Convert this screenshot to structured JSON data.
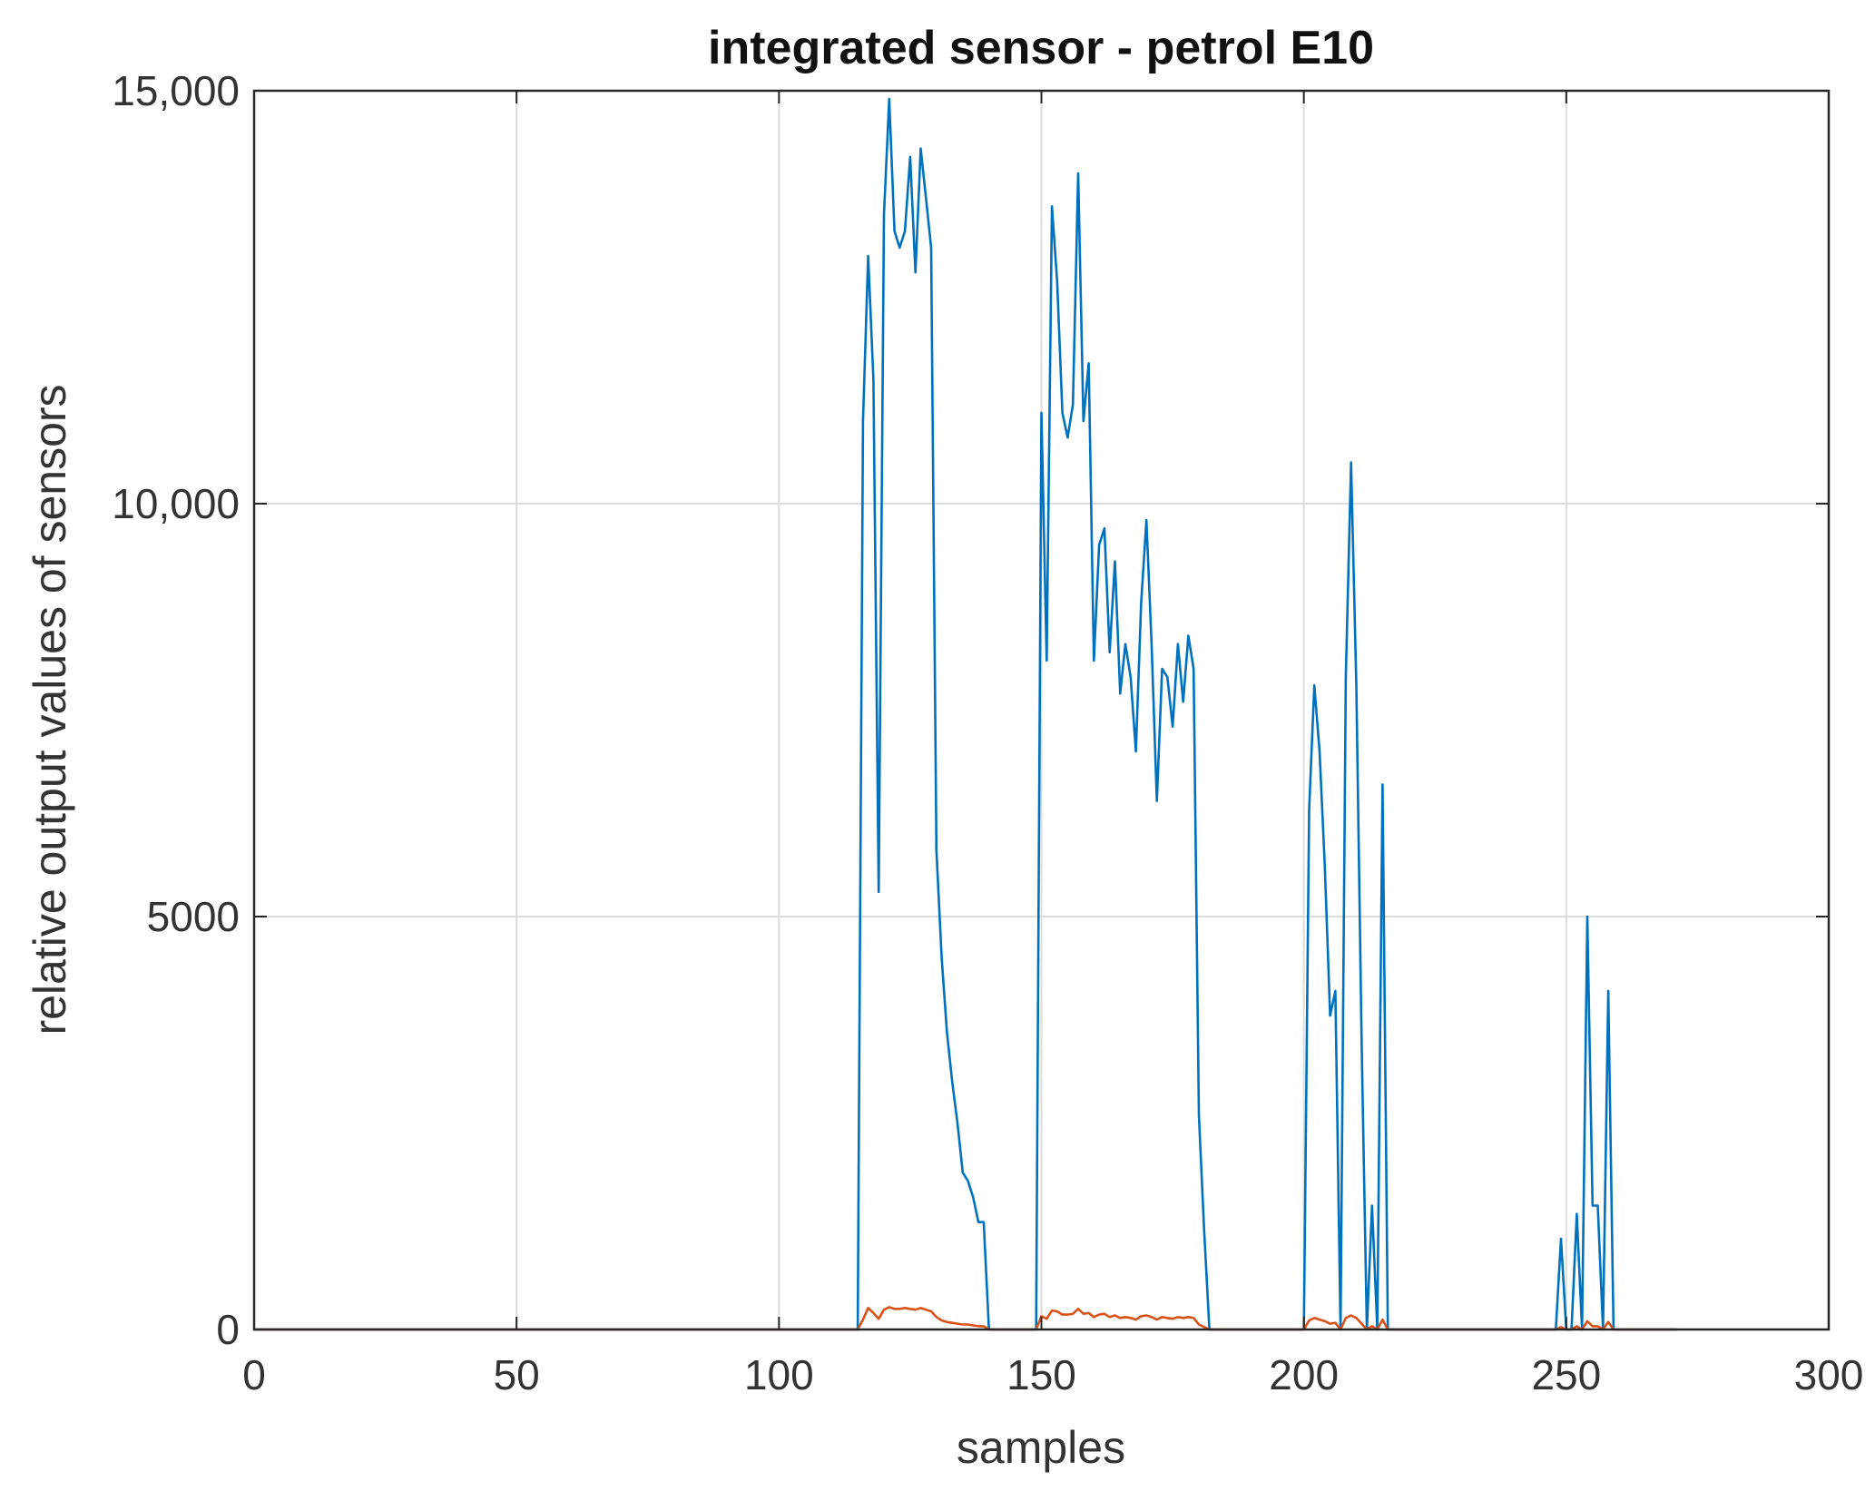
{
  "chart_data": {
    "type": "line",
    "title": "integrated sensor - petrol E10",
    "xlabel": "samples",
    "ylabel": "relative output values of sensors",
    "xlim": [
      0,
      300
    ],
    "ylim": [
      0,
      15000
    ],
    "xticks": [
      0,
      50,
      100,
      150,
      200,
      250,
      300
    ],
    "xtick_labels": [
      "0",
      "50",
      "100",
      "150",
      "200",
      "250",
      "300"
    ],
    "yticks": [
      0,
      5000,
      10000,
      15000
    ],
    "ytick_labels": [
      "0",
      "5000",
      "10,000",
      "15,000"
    ],
    "grid": true,
    "legend": "none",
    "series": [
      {
        "color": "#0072BD",
        "x": [
          0,
          115,
          116,
          117,
          118,
          119,
          120,
          121,
          122,
          123,
          124,
          125,
          126,
          127,
          128,
          129,
          130,
          131,
          132,
          133,
          134,
          135,
          136,
          137,
          138,
          139,
          140,
          141,
          142,
          143,
          149,
          150,
          151,
          152,
          153,
          154,
          155,
          156,
          157,
          158,
          159,
          160,
          161,
          162,
          163,
          164,
          165,
          166,
          167,
          168,
          169,
          170,
          171,
          172,
          173,
          174,
          175,
          176,
          177,
          178,
          179,
          180,
          181,
          182,
          183,
          184,
          185,
          186,
          200,
          201,
          202,
          203,
          204,
          205,
          206,
          207,
          208,
          209,
          210,
          211,
          212,
          213,
          214,
          215,
          216,
          217,
          248,
          249,
          250,
          251,
          252,
          253,
          254,
          255,
          256,
          257,
          258,
          259,
          260,
          261,
          271
        ],
        "values": [
          0,
          0,
          11000,
          13000,
          11500,
          5300,
          13500,
          14900,
          13300,
          13100,
          13300,
          14200,
          12800,
          14300,
          13700,
          13100,
          5800,
          4500,
          3600,
          3000,
          2500,
          1900,
          1800,
          1600,
          1300,
          1300,
          0,
          0,
          0,
          0,
          0,
          11100,
          8100,
          13600,
          12700,
          11100,
          10800,
          11200,
          14000,
          11000,
          11700,
          8100,
          9500,
          9700,
          8200,
          9300,
          7700,
          8300,
          7900,
          7000,
          8800,
          9800,
          8300,
          6400,
          8000,
          7900,
          7300,
          8300,
          7600,
          8400,
          8000,
          2600,
          1200,
          0,
          0,
          0,
          0,
          0,
          0,
          6300,
          7800,
          7000,
          5600,
          3800,
          4100,
          0,
          7900,
          10500,
          7800,
          3500,
          0,
          1500,
          0,
          6600,
          0,
          0,
          0,
          1100,
          0,
          0,
          1400,
          0,
          5000,
          1500,
          1500,
          0,
          4100,
          0,
          0,
          0,
          0
        ]
      },
      {
        "color": "#D95319",
        "x": [
          0,
          115,
          116,
          117,
          118,
          119,
          120,
          121,
          122,
          123,
          124,
          125,
          126,
          127,
          128,
          129,
          130,
          131,
          132,
          133,
          134,
          135,
          136,
          137,
          138,
          139,
          140,
          141,
          142,
          143,
          149,
          150,
          151,
          152,
          153,
          154,
          155,
          156,
          157,
          158,
          159,
          160,
          161,
          162,
          163,
          164,
          165,
          166,
          167,
          168,
          169,
          170,
          171,
          172,
          173,
          174,
          175,
          176,
          177,
          178,
          179,
          180,
          181,
          182,
          183,
          184,
          185,
          186,
          200,
          201,
          202,
          203,
          204,
          205,
          206,
          207,
          208,
          209,
          210,
          211,
          212,
          213,
          214,
          215,
          216,
          217,
          248,
          249,
          250,
          251,
          252,
          253,
          254,
          255,
          256,
          257,
          258,
          259,
          260,
          261,
          271
        ],
        "values": [
          0,
          0,
          120,
          260,
          200,
          130,
          240,
          270,
          250,
          250,
          260,
          250,
          240,
          260,
          240,
          220,
          150,
          110,
          90,
          80,
          70,
          60,
          60,
          50,
          40,
          40,
          0,
          0,
          0,
          0,
          0,
          160,
          130,
          230,
          220,
          180,
          180,
          190,
          250,
          190,
          200,
          150,
          180,
          190,
          150,
          170,
          140,
          150,
          140,
          120,
          160,
          170,
          150,
          120,
          150,
          140,
          130,
          150,
          140,
          150,
          140,
          60,
          30,
          0,
          0,
          0,
          0,
          0,
          0,
          110,
          140,
          120,
          100,
          70,
          80,
          0,
          140,
          170,
          140,
          70,
          0,
          40,
          0,
          120,
          0,
          0,
          0,
          30,
          0,
          0,
          40,
          0,
          100,
          40,
          40,
          0,
          90,
          0,
          0,
          0,
          0
        ]
      }
    ]
  }
}
